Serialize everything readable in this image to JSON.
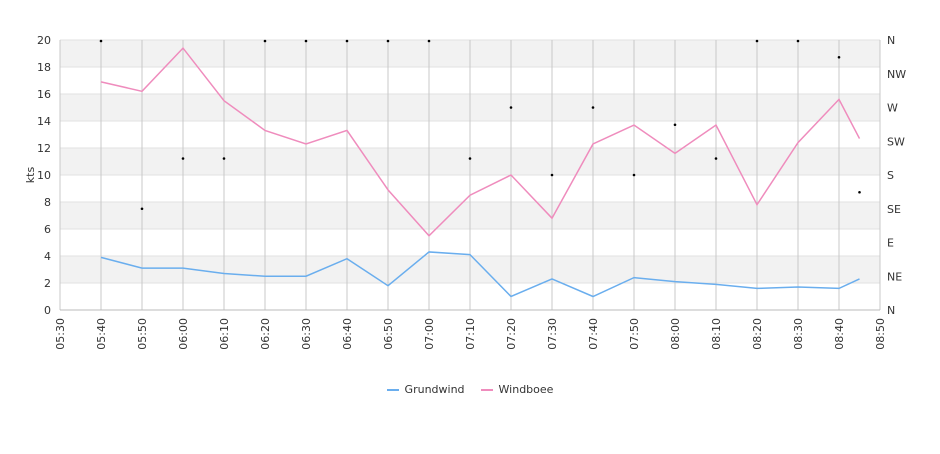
{
  "chart_data": {
    "type": "line",
    "ylabel": "kts",
    "ylim": [
      0,
      20
    ],
    "y_ticks": [
      0,
      2,
      4,
      6,
      8,
      10,
      12,
      14,
      16,
      18,
      20
    ],
    "x_ticks": [
      "05:30",
      "05:40",
      "05:50",
      "06:00",
      "06:10",
      "06:20",
      "06:30",
      "06:40",
      "06:50",
      "07:00",
      "07:10",
      "07:20",
      "07:30",
      "07:40",
      "07:50",
      "08:00",
      "08:10",
      "08:20",
      "08:30",
      "08:40",
      "08:50"
    ],
    "x": [
      "05:40",
      "05:50",
      "06:00",
      "06:10",
      "06:20",
      "06:30",
      "06:40",
      "06:50",
      "07:00",
      "07:10",
      "07:20",
      "07:30",
      "07:40",
      "07:50",
      "08:00",
      "08:10",
      "08:20",
      "08:30",
      "08:40",
      "08:45"
    ],
    "series": [
      {
        "name": "Grundwind",
        "color": "#6aaeee",
        "values": [
          3.9,
          3.1,
          3.1,
          2.7,
          2.5,
          2.5,
          3.8,
          1.8,
          4.3,
          4.1,
          1.0,
          2.3,
          1.0,
          2.4,
          2.1,
          1.9,
          1.6,
          1.7,
          1.6,
          2.3
        ]
      },
      {
        "name": "Windboee",
        "color": "#ef8cbd",
        "values": [
          16.9,
          16.2,
          19.4,
          15.5,
          13.3,
          12.3,
          13.3,
          8.9,
          5.5,
          8.5,
          10.0,
          6.8,
          12.3,
          13.7,
          11.6,
          13.7,
          7.8,
          12.4,
          15.6,
          12.7
        ]
      }
    ],
    "direction_axis": {
      "labels": [
        "N",
        "NE",
        "E",
        "SE",
        "S",
        "SW",
        "W",
        "NW",
        "N"
      ],
      "range": [
        0,
        360
      ]
    },
    "direction_points": {
      "x": [
        "05:40",
        "05:50",
        "06:00",
        "06:10",
        "06:20",
        "06:30",
        "06:40",
        "06:50",
        "07:00",
        "07:10",
        "07:20",
        "07:30",
        "07:40",
        "07:50",
        "08:00",
        "08:10",
        "08:20",
        "08:30",
        "08:40",
        "08:45"
      ],
      "values": [
        360,
        135,
        202,
        202,
        360,
        360,
        360,
        360,
        360,
        202,
        270,
        180,
        270,
        180,
        247,
        202,
        360,
        360,
        337,
        157
      ]
    },
    "grid": true,
    "banded_background": true,
    "legend_position": "bottom"
  }
}
